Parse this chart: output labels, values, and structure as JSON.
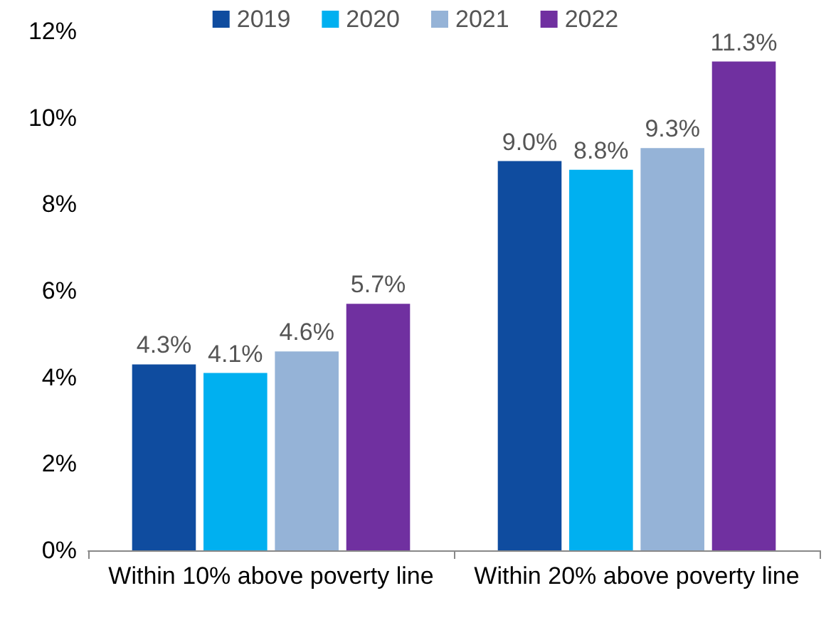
{
  "chart_data": {
    "type": "bar",
    "categories": [
      "Within 10% above poverty line",
      "Within 20% above poverty line"
    ],
    "series": [
      {
        "name": "2019",
        "color": "#0f4c9f",
        "values": [
          4.3,
          9.0
        ],
        "value_labels": [
          "4.3%",
          "9.0%"
        ]
      },
      {
        "name": "2020",
        "color": "#00b0f0",
        "values": [
          4.1,
          8.8
        ],
        "value_labels": [
          "4.1%",
          "8.8%"
        ]
      },
      {
        "name": "2021",
        "color": "#95b3d7",
        "values": [
          4.6,
          9.3
        ],
        "value_labels": [
          "4.6%",
          "9.3%"
        ]
      },
      {
        "name": "2022",
        "color": "#7030a0",
        "values": [
          5.7,
          11.3
        ],
        "value_labels": [
          "5.7%",
          "11.3%"
        ]
      }
    ],
    "ylim": [
      0,
      12
    ],
    "yticks": [
      {
        "value": 0,
        "label": "0%"
      },
      {
        "value": 2,
        "label": "2%"
      },
      {
        "value": 4,
        "label": "4%"
      },
      {
        "value": 6,
        "label": "6%"
      },
      {
        "value": 8,
        "label": "8%"
      },
      {
        "value": 10,
        "label": "10%"
      },
      {
        "value": 12,
        "label": "12%"
      }
    ],
    "grid": false,
    "legend": "top"
  }
}
